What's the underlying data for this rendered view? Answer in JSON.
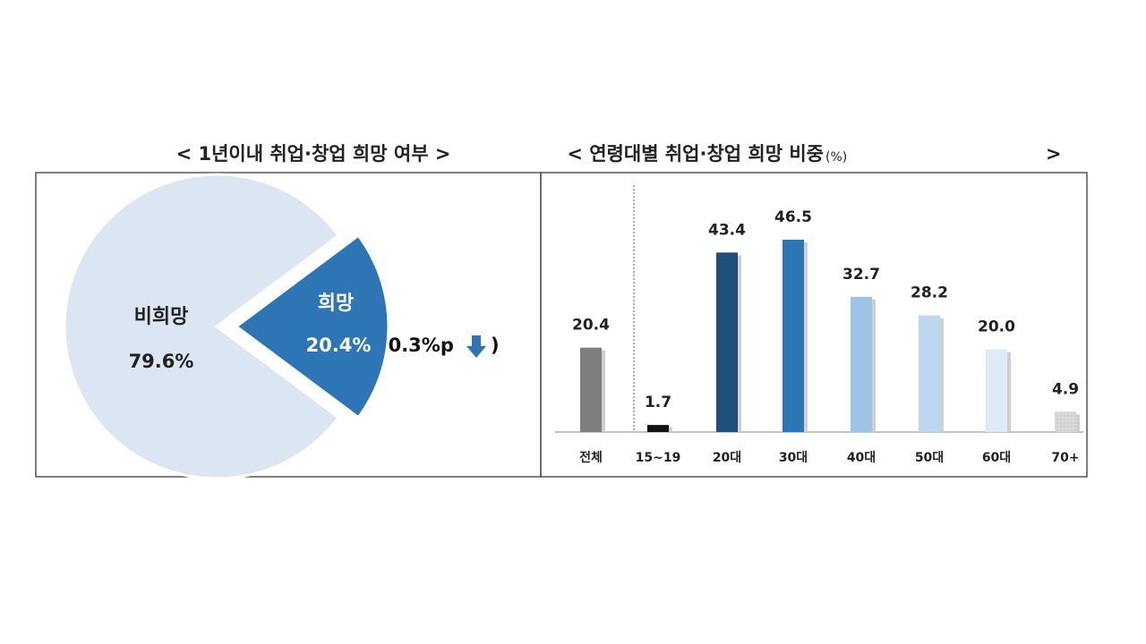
{
  "chart_data": [
    {
      "type": "pie",
      "title": "< 1년이내 취업·창업 희망 여부 >",
      "categories": [
        "비희망",
        "희망"
      ],
      "values": [
        79.6,
        20.4
      ],
      "value_labels": [
        "79.6%",
        "20.4%"
      ],
      "colors": [
        "#dce6f2",
        "#2e75b6"
      ],
      "annotation": "(0.3%p",
      "annotation_close": ")"
    },
    {
      "type": "bar",
      "title": "< 연령대별 취업·창업 희망 비중",
      "unit": "(%)",
      "title_close": ">",
      "categories": [
        "전체",
        "15~19",
        "20대",
        "30대",
        "40대",
        "50대",
        "60대",
        "70+"
      ],
      "values": [
        20.4,
        1.7,
        43.4,
        46.5,
        32.7,
        28.2,
        20.0,
        4.9
      ],
      "value_labels": [
        "20.4",
        "1.7",
        "43.4",
        "46.5",
        "32.7",
        "28.2",
        "20.0",
        "4.9"
      ],
      "colors": [
        "#7f7f7f",
        "#111111",
        "#1f4e79",
        "#2e75b6",
        "#9dc3e6",
        "#bdd7ee",
        "#ddebf7",
        "#d9d9d9"
      ]
    }
  ]
}
